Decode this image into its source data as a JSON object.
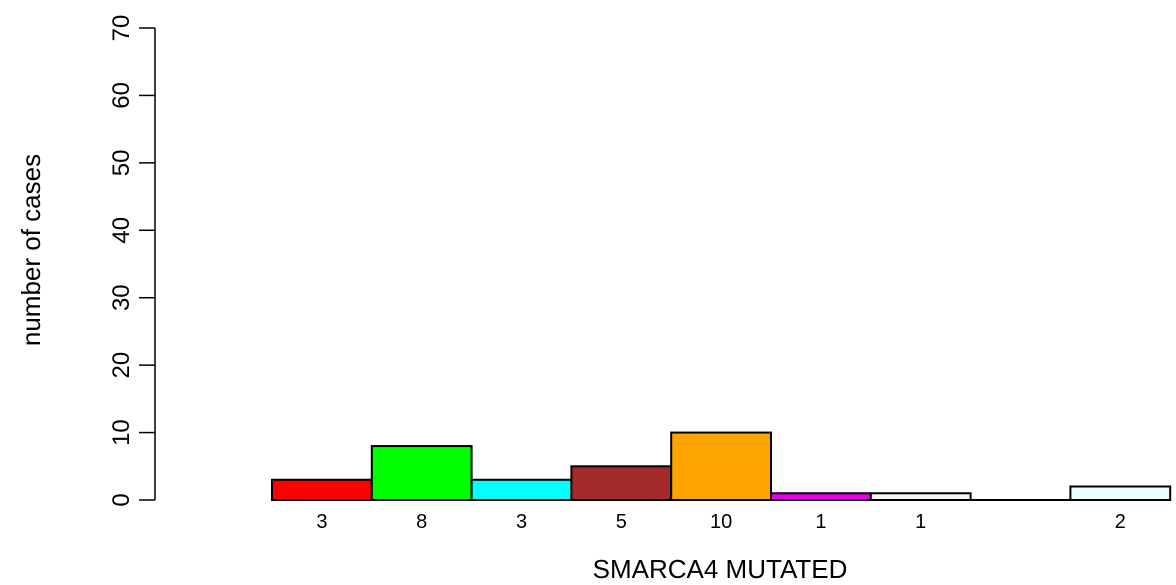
{
  "chart_data": {
    "type": "bar",
    "xlabel": "SMARCA4 MUTATED",
    "ylabel": "number of cases",
    "ylim": [
      0,
      70
    ],
    "yticks": [
      0,
      10,
      20,
      30,
      40,
      50,
      60,
      70
    ],
    "grid": false,
    "legend": "none",
    "bars": [
      {
        "value": 3,
        "label": "3",
        "color": "#FF0000"
      },
      {
        "value": 8,
        "label": "8",
        "color": "#00FF00"
      },
      {
        "value": 3,
        "label": "3",
        "color": "#00FFFF"
      },
      {
        "value": 5,
        "label": "5",
        "color": "#A52A2A"
      },
      {
        "value": 10,
        "label": "10",
        "color": "#FFA500"
      },
      {
        "value": 1,
        "label": "1",
        "color": "#EE00EE"
      },
      {
        "value": 1,
        "label": "1",
        "color": "#F5F5F5"
      },
      {
        "value": 0,
        "label": "",
        "color": "#FFFFFF"
      },
      {
        "value": 2,
        "label": "2",
        "color": "#EEFFFF"
      }
    ]
  }
}
